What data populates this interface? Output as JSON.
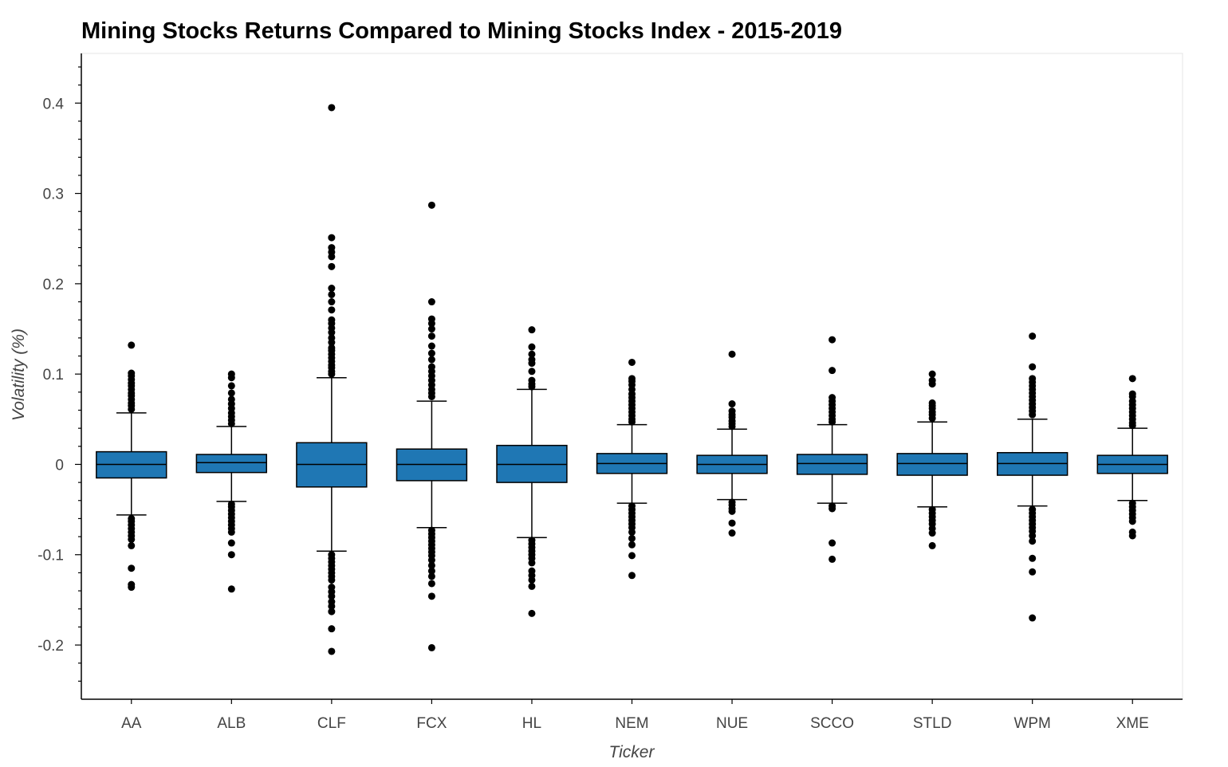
{
  "chart_data": {
    "type": "box",
    "title": "Mining Stocks Returns Compared to Mining Stocks Index - 2015-2019",
    "xlabel": "Ticker",
    "ylabel": "Volatility (%)",
    "ylim": [
      -0.26,
      0.455
    ],
    "yticks": [
      -0.2,
      -0.1,
      0,
      0.1,
      0.2,
      0.3,
      0.4
    ],
    "ytick_labels": [
      "-0.2",
      "-0.1",
      "0",
      "0.1",
      "0.2",
      "0.3",
      "0.4"
    ],
    "grid": false,
    "colors": {
      "box_fill": "#1f77b4",
      "outline": "#000000",
      "axis": "#000000",
      "frame": "#e5e5e5"
    },
    "categories": [
      "AA",
      "ALB",
      "CLF",
      "FCX",
      "HL",
      "NEM",
      "NUE",
      "SCCO",
      "STLD",
      "WPM",
      "XME"
    ],
    "boxes": [
      {
        "ticker": "AA",
        "lower_whisker": -0.056,
        "q1": -0.015,
        "median": 0.0,
        "q3": 0.014,
        "upper_whisker": 0.057,
        "outliers": [
          0.132,
          0.101,
          0.098,
          0.094,
          0.09,
          0.087,
          0.083,
          0.079,
          0.076,
          0.072,
          0.068,
          0.065,
          0.061,
          -0.06,
          -0.063,
          -0.067,
          -0.071,
          -0.075,
          -0.079,
          -0.083,
          -0.09,
          -0.115,
          -0.133,
          -0.136
        ]
      },
      {
        "ticker": "ALB",
        "lower_whisker": -0.041,
        "q1": -0.009,
        "median": 0.002,
        "q3": 0.011,
        "upper_whisker": 0.042,
        "outliers": [
          0.1,
          0.096,
          0.087,
          0.079,
          0.072,
          0.067,
          0.062,
          0.057,
          0.053,
          0.049,
          0.045,
          -0.044,
          -0.047,
          -0.051,
          -0.055,
          -0.059,
          -0.063,
          -0.067,
          -0.071,
          -0.075,
          -0.087,
          -0.1,
          -0.138
        ]
      },
      {
        "ticker": "CLF",
        "lower_whisker": -0.096,
        "q1": -0.025,
        "median": 0.0,
        "q3": 0.024,
        "upper_whisker": 0.096,
        "outliers": [
          0.395,
          0.251,
          0.24,
          0.235,
          0.23,
          0.219,
          0.195,
          0.188,
          0.18,
          0.171,
          0.16,
          0.156,
          0.151,
          0.146,
          0.14,
          0.135,
          0.129,
          0.126,
          0.122,
          0.118,
          0.114,
          0.11,
          0.107,
          0.103,
          0.1,
          -0.1,
          -0.104,
          -0.108,
          -0.112,
          -0.116,
          -0.12,
          -0.124,
          -0.128,
          -0.136,
          -0.141,
          -0.146,
          -0.152,
          -0.157,
          -0.163,
          -0.182,
          -0.207
        ]
      },
      {
        "ticker": "FCX",
        "lower_whisker": -0.07,
        "q1": -0.018,
        "median": 0.0,
        "q3": 0.017,
        "upper_whisker": 0.07,
        "outliers": [
          0.287,
          0.18,
          0.161,
          0.156,
          0.15,
          0.142,
          0.131,
          0.123,
          0.116,
          0.108,
          0.103,
          0.098,
          0.093,
          0.088,
          0.083,
          0.079,
          0.075,
          -0.073,
          -0.077,
          -0.081,
          -0.085,
          -0.089,
          -0.093,
          -0.097,
          -0.101,
          -0.106,
          -0.112,
          -0.118,
          -0.124,
          -0.132,
          -0.146,
          -0.203
        ]
      },
      {
        "ticker": "HL",
        "lower_whisker": -0.081,
        "q1": -0.02,
        "median": 0.0,
        "q3": 0.021,
        "upper_whisker": 0.083,
        "outliers": [
          0.149,
          0.13,
          0.122,
          0.116,
          0.112,
          0.103,
          0.093,
          0.089,
          0.086,
          -0.084,
          -0.088,
          -0.092,
          -0.096,
          -0.1,
          -0.104,
          -0.109,
          -0.118,
          -0.123,
          -0.128,
          -0.135,
          -0.165
        ]
      },
      {
        "ticker": "NEM",
        "lower_whisker": -0.043,
        "q1": -0.01,
        "median": 0.001,
        "q3": 0.012,
        "upper_whisker": 0.044,
        "outliers": [
          0.113,
          0.095,
          0.092,
          0.088,
          0.083,
          0.078,
          0.074,
          0.07,
          0.066,
          0.062,
          0.058,
          0.054,
          0.05,
          0.047,
          -0.046,
          -0.05,
          -0.054,
          -0.058,
          -0.062,
          -0.066,
          -0.07,
          -0.075,
          -0.082,
          -0.089,
          -0.101,
          -0.123
        ]
      },
      {
        "ticker": "NUE",
        "lower_whisker": -0.039,
        "q1": -0.01,
        "median": 0.0,
        "q3": 0.01,
        "upper_whisker": 0.039,
        "outliers": [
          0.122,
          0.067,
          0.059,
          0.055,
          0.052,
          0.048,
          0.045,
          0.042,
          -0.042,
          -0.045,
          -0.049,
          -0.052,
          -0.065,
          -0.076
        ]
      },
      {
        "ticker": "SCCO",
        "lower_whisker": -0.043,
        "q1": -0.011,
        "median": 0.001,
        "q3": 0.011,
        "upper_whisker": 0.044,
        "outliers": [
          0.138,
          0.104,
          0.074,
          0.07,
          0.066,
          0.062,
          0.058,
          0.054,
          0.05,
          0.047,
          -0.046,
          -0.049,
          -0.087,
          -0.105
        ]
      },
      {
        "ticker": "STLD",
        "lower_whisker": -0.047,
        "q1": -0.012,
        "median": 0.001,
        "q3": 0.012,
        "upper_whisker": 0.047,
        "outliers": [
          0.1,
          0.093,
          0.089,
          0.068,
          0.065,
          0.062,
          0.058,
          0.055,
          0.051,
          -0.05,
          -0.054,
          -0.058,
          -0.062,
          -0.066,
          -0.071,
          -0.076,
          -0.09
        ]
      },
      {
        "ticker": "WPM",
        "lower_whisker": -0.046,
        "q1": -0.012,
        "median": 0.001,
        "q3": 0.013,
        "upper_whisker": 0.05,
        "outliers": [
          0.142,
          0.108,
          0.095,
          0.091,
          0.087,
          0.083,
          0.079,
          0.075,
          0.071,
          0.067,
          0.063,
          0.059,
          0.055,
          -0.05,
          -0.054,
          -0.058,
          -0.062,
          -0.066,
          -0.07,
          -0.074,
          -0.079,
          -0.085,
          -0.104,
          -0.119,
          -0.17
        ]
      },
      {
        "ticker": "XME",
        "lower_whisker": -0.04,
        "q1": -0.01,
        "median": 0.0,
        "q3": 0.01,
        "upper_whisker": 0.04,
        "outliers": [
          0.095,
          0.078,
          0.075,
          0.07,
          0.066,
          0.062,
          0.058,
          0.054,
          0.05,
          0.046,
          0.043,
          -0.043,
          -0.047,
          -0.051,
          -0.055,
          -0.059,
          -0.063,
          -0.075,
          -0.079
        ]
      }
    ]
  }
}
